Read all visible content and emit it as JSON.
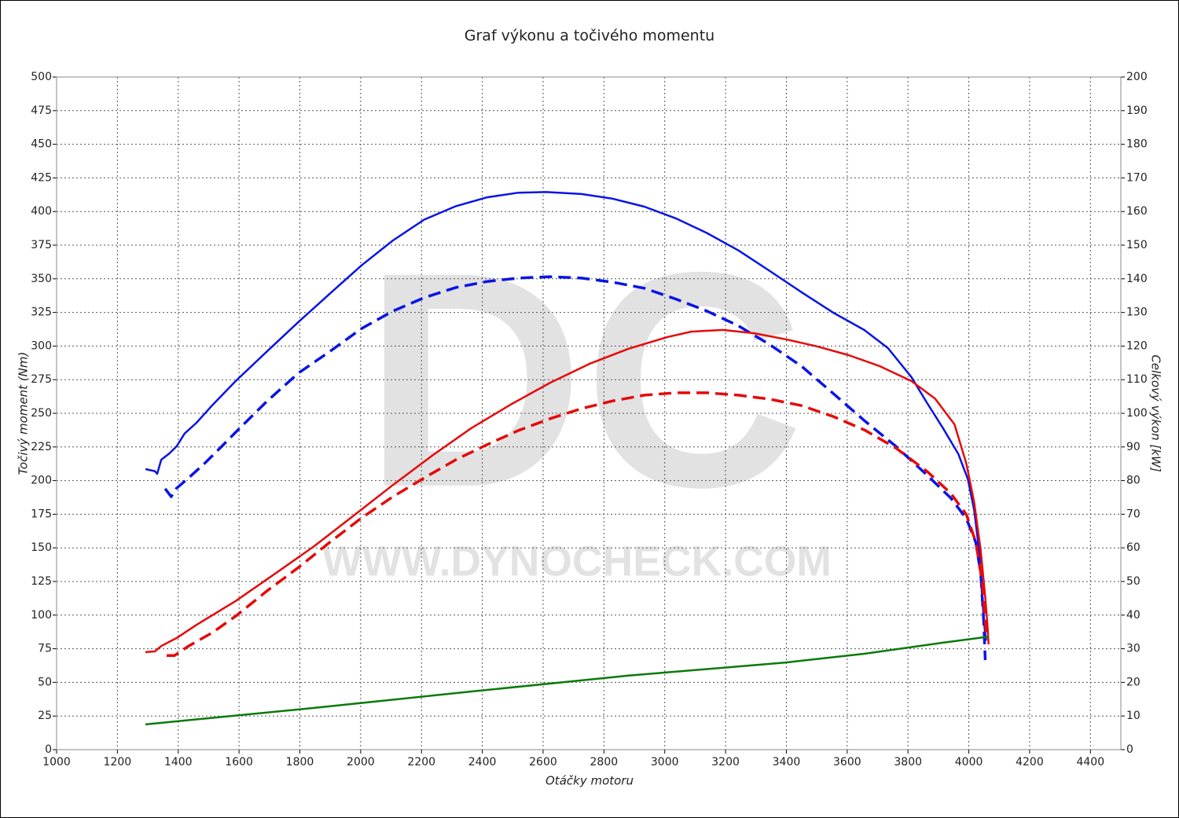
{
  "chart_data": {
    "type": "line",
    "title": "Graf výkonu a točivého momentu",
    "xlabel": "Otáčky motoru",
    "ylabel": "Točivý moment (Nm)",
    "y2label": "Celkový výkon [kW]",
    "watermark": [
      "DC",
      "WWW.DYNOCHECK.COM"
    ],
    "xlim": [
      1000,
      4500
    ],
    "xticks": [
      1000,
      1200,
      1400,
      1600,
      1800,
      2000,
      2200,
      2400,
      2600,
      2800,
      3000,
      3200,
      3400,
      3600,
      3800,
      4000,
      4200,
      4400
    ],
    "ylim": [
      0,
      500
    ],
    "yticks": [
      0,
      25,
      50,
      75,
      100,
      125,
      150,
      175,
      200,
      225,
      250,
      275,
      300,
      325,
      350,
      375,
      400,
      425,
      450,
      475,
      500
    ],
    "y2lim": [
      0,
      200
    ],
    "y2ticks": [
      0,
      10,
      20,
      30,
      40,
      50,
      60,
      70,
      80,
      90,
      100,
      110,
      120,
      130,
      140,
      150,
      160,
      170,
      180,
      190,
      200
    ],
    "grid": true,
    "series": [
      {
        "color": "#0a14e6",
        "style": "solid",
        "x": [
          1292,
          1323,
          1331,
          1344,
          1370,
          1395,
          1421,
          1460,
          1512,
          1589,
          1692,
          1796,
          1899,
          2003,
          2106,
          2209,
          2313,
          2416,
          2519,
          2610,
          2726,
          2829,
          2933,
          3036,
          3139,
          3243,
          3346,
          3450,
          3553,
          3656,
          3734,
          3811,
          3863,
          3915,
          3966,
          3997,
          4018,
          4034,
          4044,
          4052,
          4057
        ],
        "values": [
          208.5,
          207,
          205,
          215.5,
          220,
          225.5,
          235,
          243,
          256,
          274,
          296,
          318,
          339,
          360,
          378.5,
          394,
          404,
          410.6,
          414,
          414.5,
          413,
          409.5,
          403.6,
          395,
          384,
          371,
          355.7,
          340,
          325,
          312,
          298.5,
          277,
          257.6,
          239,
          219.6,
          201,
          177.6,
          148,
          113,
          90,
          81
        ]
      },
      {
        "color": "#0a14e6",
        "style": "dashed",
        "x": [
          1357,
          1377,
          1393,
          1434,
          1486,
          1537,
          1589,
          1692,
          1796,
          1899,
          2003,
          2106,
          2209,
          2313,
          2416,
          2519,
          2623,
          2726,
          2829,
          2933,
          3036,
          3139,
          3243,
          3346,
          3450,
          3553,
          3656,
          3760,
          3863,
          3941,
          3992,
          4023,
          4039,
          4049,
          4054
        ],
        "values": [
          194,
          188,
          194,
          202,
          212.6,
          224,
          236,
          259,
          280,
          296,
          313,
          326,
          336,
          343.5,
          348,
          350.5,
          351.6,
          350.5,
          347.5,
          343,
          335,
          326,
          315,
          301,
          285,
          265,
          244.7,
          225.5,
          204,
          187,
          171.7,
          154,
          131,
          96,
          66.6
        ]
      },
      {
        "color": "#e60a0a",
        "style": "solid",
        "axis": "y2",
        "x": [
          1292,
          1323,
          1344,
          1395,
          1460,
          1589,
          1718,
          1847,
          1977,
          2106,
          2235,
          2364,
          2493,
          2623,
          2752,
          2881,
          3010,
          3088,
          3191,
          3295,
          3398,
          3501,
          3605,
          3708,
          3811,
          3889,
          3953,
          3992,
          4018,
          4039,
          4054,
          4062,
          4065
        ],
        "values": [
          29.0,
          29.2,
          30.8,
          33.2,
          37.1,
          44.2,
          52.3,
          60.5,
          69.6,
          78.7,
          87.4,
          95.6,
          102.6,
          109.1,
          114.7,
          119.2,
          122.7,
          124.3,
          124.8,
          123.8,
          122.0,
          119.9,
          117.3,
          114.0,
          109.6,
          104.4,
          96.7,
          85.0,
          73.4,
          59.3,
          45.3,
          36.0,
          31.3
        ]
      },
      {
        "color": "#e60a0a",
        "style": "dashed",
        "axis": "y2",
        "x": [
          1362,
          1388,
          1434,
          1512,
          1589,
          1692,
          1796,
          1899,
          2003,
          2106,
          2209,
          2313,
          2416,
          2519,
          2623,
          2726,
          2829,
          2933,
          3036,
          3139,
          3243,
          3346,
          3450,
          3553,
          3656,
          3760,
          3863,
          3941,
          3992,
          4023,
          4044,
          4054,
          4059
        ],
        "values": [
          28.0,
          28.0,
          30.8,
          34.8,
          39.7,
          47.2,
          54.2,
          61.7,
          68.9,
          75.2,
          80.8,
          86.2,
          90.7,
          94.9,
          98.4,
          101.4,
          103.7,
          105.4,
          106.1,
          106.1,
          105.4,
          104.2,
          102.3,
          99.1,
          95.1,
          89.7,
          82.7,
          76.2,
          69.9,
          61.7,
          50.0,
          38.3,
          33.6
        ]
      },
      {
        "color": "#0a7a0a",
        "style": "solid",
        "axis": "y2",
        "x": [
          1292,
          1847,
          2364,
          2881,
          3398,
          3656,
          3915,
          4065
        ],
        "values": [
          7.5,
          12.4,
          17.3,
          22.0,
          25.9,
          28.5,
          31.8,
          33.6
        ]
      }
    ]
  }
}
